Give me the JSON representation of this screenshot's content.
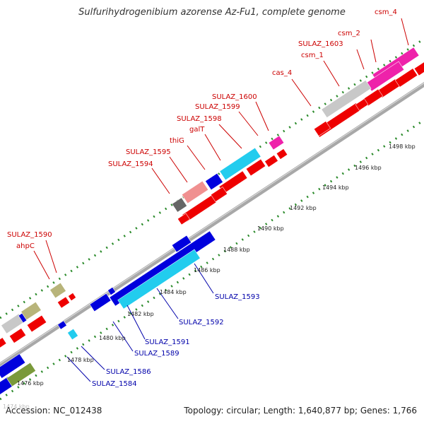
{
  "title": "Sulfurihydrogenibium azorense Az-Fu1, complete genome",
  "footer": {
    "accession": "Accession: NC_012438",
    "topology": "Topology: circular; Length: 1,640,877 bp; Genes: 1,766"
  },
  "colors": {
    "backbone": "#a8a8a8",
    "tick": "#2a8a2a",
    "forward_label": "#cc0000",
    "reverse_label": "#0000aa",
    "red": "#ee0000",
    "blue": "#0000dd",
    "cyan": "#22ccee",
    "magenta": "#ee22aa",
    "grey": "#c8c8c8",
    "olive": "#b8b47a",
    "pink": "#f09090",
    "darkgrey": "#666666",
    "green": "#7a9a3a"
  },
  "scale_labels": [
    "1474 kbp",
    "1476 kbp",
    "1478 kbp",
    "1480 kbp",
    "1482 kbp",
    "1484 kbp",
    "1486 kbp",
    "1488 kbp",
    "1490 kbp",
    "1492 kbp",
    "1494 kbp",
    "1496 kbp",
    "1498 kbp"
  ],
  "forward_labels": [
    "csm_4",
    "csm_2",
    "SULAZ_1603",
    "csm_1",
    "cas_4",
    "SULAZ_1600",
    "SULAZ_1599",
    "SULAZ_1598",
    "galT",
    "thiG",
    "SULAZ_1595",
    "SULAZ_1594",
    "SULAZ_1590",
    "ahpC"
  ],
  "reverse_labels": [
    "SULAZ_1593",
    "SULAZ_1592",
    "SULAZ_1591",
    "SULAZ_1589",
    "SULAZ_1586",
    "SULAZ_1584"
  ]
}
